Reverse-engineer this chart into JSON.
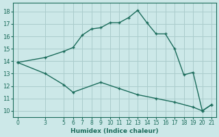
{
  "xlabel": "Humidex (Indice chaleur)",
  "bg_color": "#cce8e8",
  "grid_color": "#aacccc",
  "line_color": "#1a6b5a",
  "xlim": [
    -0.5,
    21.5
  ],
  "ylim": [
    9.5,
    18.7
  ],
  "xticks": [
    0,
    3,
    5,
    6,
    7,
    8,
    9,
    10,
    11,
    12,
    13,
    14,
    15,
    16,
    17,
    18,
    19,
    20,
    21
  ],
  "yticks": [
    10,
    11,
    12,
    13,
    14,
    15,
    16,
    17,
    18
  ],
  "line1_x": [
    0,
    3,
    5,
    6,
    7,
    8,
    9,
    10,
    11,
    12,
    13,
    14,
    15,
    16,
    17,
    18,
    19,
    20,
    21
  ],
  "line1_y": [
    13.9,
    14.3,
    14.8,
    15.1,
    16.1,
    16.6,
    16.7,
    17.1,
    17.1,
    17.5,
    18.1,
    17.1,
    16.2,
    16.2,
    15.0,
    12.9,
    13.1,
    10.0,
    10.5
  ],
  "line2_x": [
    0,
    3,
    5,
    6,
    9,
    11,
    13,
    15,
    17,
    19,
    20,
    21
  ],
  "line2_y": [
    13.9,
    13.0,
    12.1,
    11.5,
    12.3,
    11.8,
    11.3,
    11.0,
    10.7,
    10.3,
    10.0,
    10.5
  ]
}
